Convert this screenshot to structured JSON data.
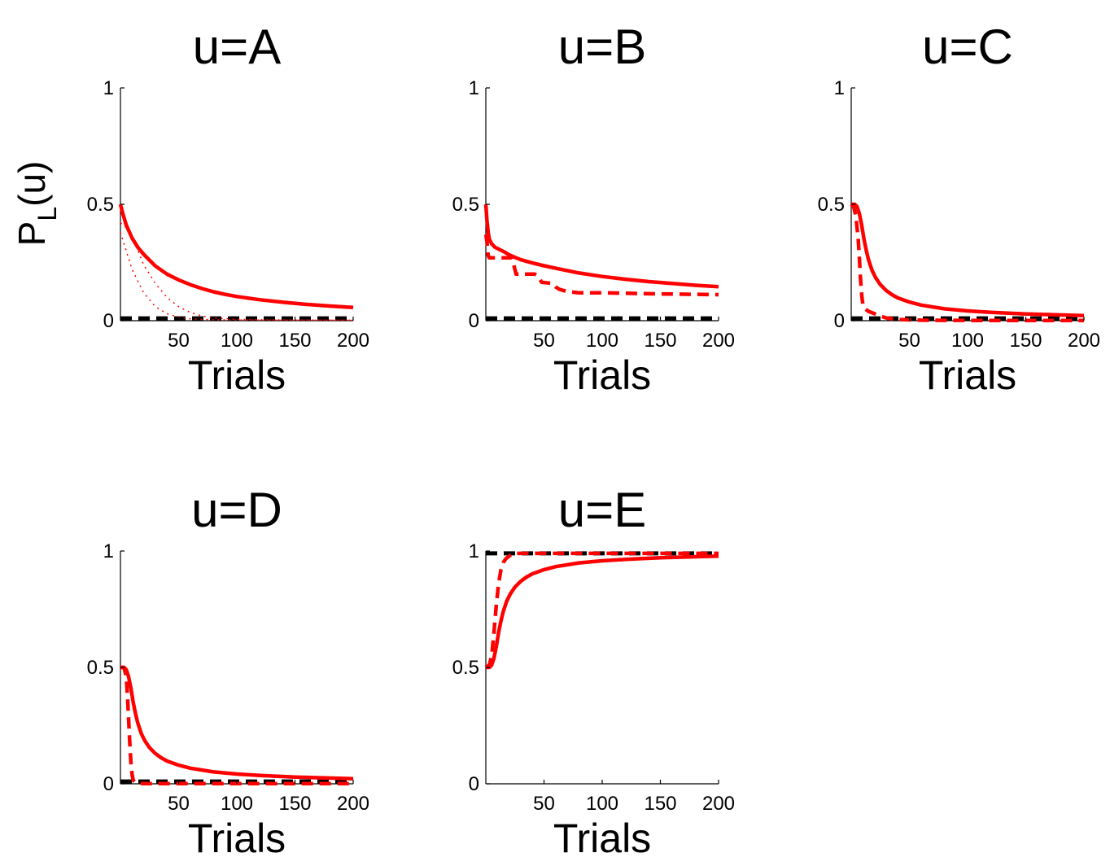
{
  "colors": {
    "model": "#ff0000",
    "reference": "#000000"
  },
  "chart_data": [
    {
      "type": "line",
      "title": "u=A",
      "xlabel": "Trials",
      "ylabel": "P_L(u)",
      "xlim": [
        0,
        200
      ],
      "ylim": [
        0,
        1
      ],
      "xticks": [
        "50",
        "100",
        "150",
        "200"
      ],
      "yticks": [
        "0",
        "0.5",
        "1"
      ],
      "series": [
        {
          "style": "reference-dashed",
          "x": [
            0,
            200
          ],
          "y": [
            0.01,
            0.01
          ]
        },
        {
          "style": "dotted-thin",
          "x": [
            0,
            5,
            10,
            20,
            30,
            40,
            50,
            60,
            70,
            80,
            100,
            120,
            150,
            200
          ],
          "y": [
            0.42,
            0.4,
            0.36,
            0.24,
            0.16,
            0.1,
            0.06,
            0.035,
            0.02,
            0.012,
            0.006,
            0.004,
            0.003,
            0.002
          ]
        },
        {
          "style": "dotted-thin",
          "x": [
            0,
            5,
            10,
            20,
            30,
            40,
            50,
            60,
            80,
            100,
            150,
            200
          ],
          "y": [
            0.38,
            0.3,
            0.22,
            0.12,
            0.06,
            0.03,
            0.015,
            0.008,
            0.004,
            0.003,
            0.002,
            0.002
          ]
        },
        {
          "style": "solid",
          "x": [
            0,
            2,
            5,
            10,
            15,
            20,
            30,
            40,
            50,
            60,
            70,
            80,
            90,
            100,
            120,
            140,
            160,
            180,
            200
          ],
          "y": [
            0.5,
            0.46,
            0.41,
            0.355,
            0.315,
            0.285,
            0.235,
            0.2,
            0.175,
            0.155,
            0.138,
            0.124,
            0.113,
            0.104,
            0.09,
            0.079,
            0.07,
            0.063,
            0.057
          ]
        }
      ]
    },
    {
      "type": "line",
      "title": "u=B",
      "xlabel": "Trials",
      "xlim": [
        0,
        200
      ],
      "ylim": [
        0,
        1
      ],
      "xticks": [
        "50",
        "100",
        "150",
        "200"
      ],
      "yticks": [
        "0",
        "0.5",
        "1"
      ],
      "series": [
        {
          "style": "reference-dashed",
          "x": [
            0,
            200
          ],
          "y": [
            0.01,
            0.01
          ]
        },
        {
          "style": "dashed",
          "x": [
            0,
            1,
            2,
            3,
            5,
            22,
            24,
            26,
            42,
            45,
            48,
            57,
            60,
            63,
            70,
            80,
            100,
            120,
            150,
            200
          ],
          "y": [
            0.37,
            0.34,
            0.28,
            0.27,
            0.27,
            0.27,
            0.24,
            0.2,
            0.2,
            0.19,
            0.165,
            0.16,
            0.145,
            0.135,
            0.125,
            0.12,
            0.12,
            0.118,
            0.115,
            0.112
          ]
        },
        {
          "style": "solid",
          "x": [
            0,
            1,
            2,
            3,
            5,
            8,
            12,
            16,
            20,
            25,
            30,
            40,
            50,
            60,
            80,
            100,
            120,
            140,
            160,
            180,
            200
          ],
          "y": [
            0.5,
            0.43,
            0.38,
            0.35,
            0.33,
            0.315,
            0.305,
            0.295,
            0.283,
            0.272,
            0.262,
            0.248,
            0.236,
            0.225,
            0.205,
            0.19,
            0.178,
            0.168,
            0.16,
            0.152,
            0.146
          ]
        }
      ]
    },
    {
      "type": "line",
      "title": "u=C",
      "xlabel": "Trials",
      "xlim": [
        0,
        200
      ],
      "ylim": [
        0,
        1
      ],
      "xticks": [
        "50",
        "100",
        "150",
        "200"
      ],
      "yticks": [
        "0",
        "0.5",
        "1"
      ],
      "series": [
        {
          "style": "reference-dashed",
          "x": [
            0,
            200
          ],
          "y": [
            0.01,
            0.01
          ]
        },
        {
          "style": "dashed",
          "x": [
            0,
            2,
            4,
            6,
            7,
            8,
            9,
            10,
            12,
            15,
            20,
            25,
            30,
            40,
            60,
            100,
            200
          ],
          "y": [
            0.5,
            0.49,
            0.45,
            0.35,
            0.27,
            0.18,
            0.11,
            0.07,
            0.05,
            0.04,
            0.03,
            0.02,
            0.012,
            0.005,
            0.002,
            0.001,
            0.001
          ]
        },
        {
          "style": "solid",
          "x": [
            0,
            3,
            5,
            7,
            9,
            11,
            13,
            15,
            18,
            21,
            25,
            30,
            35,
            40,
            50,
            60,
            80,
            100,
            120,
            150,
            200
          ],
          "y": [
            0.5,
            0.5,
            0.49,
            0.46,
            0.41,
            0.35,
            0.3,
            0.26,
            0.215,
            0.185,
            0.155,
            0.13,
            0.112,
            0.098,
            0.08,
            0.067,
            0.051,
            0.042,
            0.036,
            0.029,
            0.022
          ]
        }
      ]
    },
    {
      "type": "line",
      "title": "u=D",
      "xlabel": "Trials",
      "xlim": [
        0,
        200
      ],
      "ylim": [
        0,
        1
      ],
      "xticks": [
        "50",
        "100",
        "150",
        "200"
      ],
      "yticks": [
        "0",
        "0.5",
        "1"
      ],
      "series": [
        {
          "style": "reference-dashed",
          "x": [
            0,
            200
          ],
          "y": [
            0.01,
            0.01
          ]
        },
        {
          "style": "dashed",
          "x": [
            0,
            3,
            5,
            6,
            7,
            8,
            9,
            10,
            11,
            13,
            16,
            20,
            200
          ],
          "y": [
            0.5,
            0.5,
            0.46,
            0.38,
            0.28,
            0.18,
            0.09,
            0.04,
            0.015,
            0.005,
            0.002,
            0.001,
            0.001
          ]
        },
        {
          "style": "solid",
          "x": [
            0,
            3,
            5,
            7,
            9,
            11,
            13,
            15,
            18,
            21,
            25,
            30,
            35,
            40,
            50,
            60,
            80,
            100,
            120,
            150,
            200
          ],
          "y": [
            0.5,
            0.5,
            0.49,
            0.46,
            0.41,
            0.35,
            0.3,
            0.26,
            0.215,
            0.185,
            0.155,
            0.13,
            0.112,
            0.098,
            0.08,
            0.067,
            0.051,
            0.042,
            0.036,
            0.029,
            0.022
          ]
        }
      ]
    },
    {
      "type": "line",
      "title": "u=E",
      "xlabel": "Trials",
      "xlim": [
        0,
        200
      ],
      "ylim": [
        0,
        1
      ],
      "xticks": [
        "50",
        "100",
        "150",
        "200"
      ],
      "yticks": [
        "0",
        "0.5",
        "1"
      ],
      "series": [
        {
          "style": "reference-dashed",
          "x": [
            0,
            200
          ],
          "y": [
            0.99,
            0.99
          ]
        },
        {
          "style": "dashed",
          "x": [
            0,
            3,
            5,
            7,
            9,
            11,
            13,
            15,
            17,
            19,
            22,
            25,
            30,
            200
          ],
          "y": [
            0.5,
            0.51,
            0.55,
            0.65,
            0.77,
            0.86,
            0.92,
            0.95,
            0.965,
            0.975,
            0.985,
            0.99,
            0.99,
            0.99
          ]
        },
        {
          "style": "solid",
          "x": [
            0,
            3,
            5,
            7,
            9,
            11,
            13,
            15,
            18,
            21,
            25,
            30,
            35,
            40,
            50,
            60,
            80,
            100,
            120,
            150,
            200
          ],
          "y": [
            0.5,
            0.5,
            0.51,
            0.54,
            0.59,
            0.65,
            0.7,
            0.74,
            0.785,
            0.815,
            0.845,
            0.87,
            0.888,
            0.902,
            0.92,
            0.933,
            0.949,
            0.958,
            0.964,
            0.971,
            0.978
          ]
        }
      ]
    }
  ]
}
